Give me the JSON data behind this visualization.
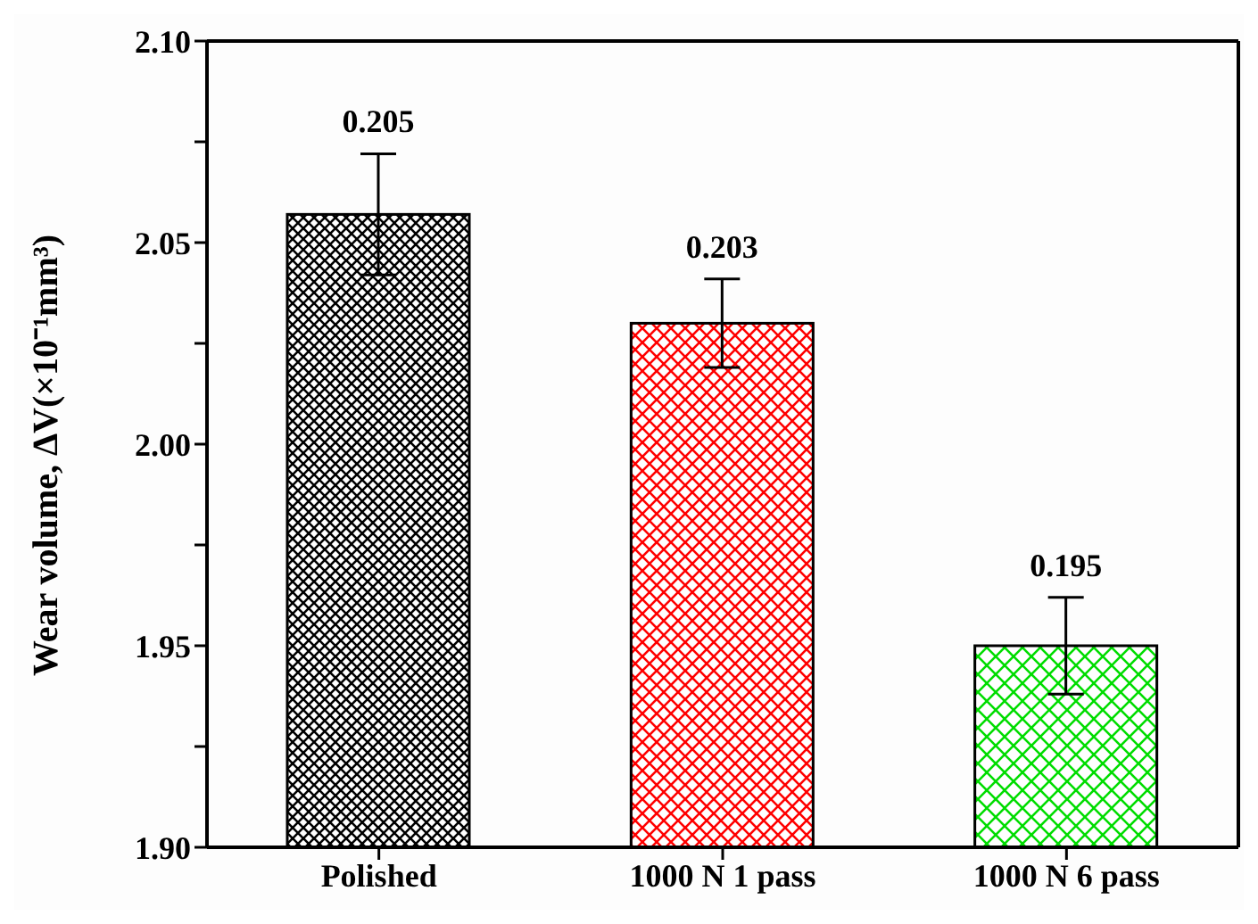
{
  "chart_data": {
    "type": "bar",
    "ylabel": "Wear volume, ΔV(×10⁻¹mm³)",
    "categories": [
      "Polished",
      "1000 N 1 pass",
      "1000 N 6 pass"
    ],
    "values": [
      2.057,
      2.03,
      1.95
    ],
    "colors": [
      "#000000",
      "#ff0000",
      "#00dd00"
    ],
    "errors": [
      [
        2.042,
        2.072
      ],
      [
        2.019,
        2.041
      ],
      [
        1.938,
        1.962
      ]
    ],
    "annotations": [
      {
        "text": "0.205",
        "x": "Polished",
        "y": 2.072
      },
      {
        "text": "0.203",
        "x": "1000 N 1 pass",
        "y": 2.041
      },
      {
        "text": "0.195",
        "x": "1000 N 6 pass",
        "y": 1.962
      }
    ],
    "ylim": [
      1.9,
      2.1
    ],
    "yticks": [
      {
        "value": 1.9,
        "label": "1.90"
      },
      {
        "value": 1.925,
        "label": null
      },
      {
        "value": 1.95,
        "label": "1.95"
      },
      {
        "value": 1.975,
        "label": null
      },
      {
        "value": 2.0,
        "label": "2.00"
      },
      {
        "value": 2.025,
        "label": null
      },
      {
        "value": 2.05,
        "label": "2.05"
      },
      {
        "value": 2.075,
        "label": null
      },
      {
        "value": 2.1,
        "label": "2.10"
      }
    ]
  }
}
